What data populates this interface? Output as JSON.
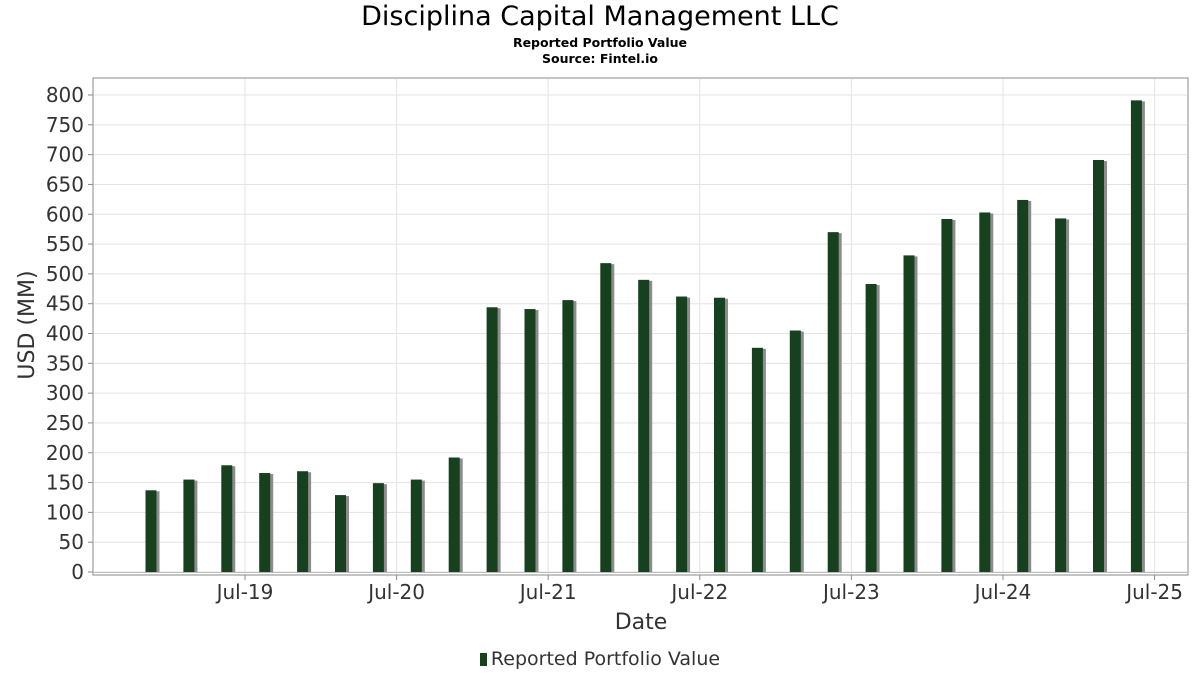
{
  "chart_data": {
    "type": "bar",
    "title": "Disciplina Capital Management LLC",
    "subtitle": "Reported Portfolio Value",
    "source": "Source: Fintel.io",
    "xlabel": "Date",
    "ylabel": "USD (MM)",
    "ylim": [
      0,
      800
    ],
    "yticks": [
      0,
      50,
      100,
      150,
      200,
      250,
      300,
      350,
      400,
      450,
      500,
      550,
      600,
      650,
      700,
      750,
      800
    ],
    "xticks": [
      "Jul-19",
      "Jul-20",
      "Jul-21",
      "Jul-22",
      "Jul-23",
      "Jul-24",
      "Jul-25"
    ],
    "grid": true,
    "legend_position": "bottom",
    "series": [
      {
        "name": "Reported Portfolio Value",
        "color": "#17401f",
        "categories": [
          "Dec-18",
          "Mar-19",
          "Jun-19",
          "Sep-19",
          "Dec-19",
          "Mar-20",
          "Jun-20",
          "Sep-20",
          "Dec-20",
          "Mar-21",
          "Jun-21",
          "Sep-21",
          "Dec-21",
          "Mar-22",
          "Jun-22",
          "Sep-22",
          "Dec-22",
          "Mar-23",
          "Jun-23",
          "Sep-23",
          "Dec-23",
          "Mar-24",
          "Jun-24",
          "Sep-24",
          "Dec-24",
          "Mar-25",
          "Jun-25"
        ],
        "values": [
          137,
          155,
          179,
          166,
          169,
          129,
          149,
          155,
          192,
          444,
          441,
          456,
          518,
          490,
          462,
          460,
          376,
          405,
          570,
          483,
          531,
          592,
          603,
          624,
          593,
          691,
          791
        ]
      }
    ]
  }
}
